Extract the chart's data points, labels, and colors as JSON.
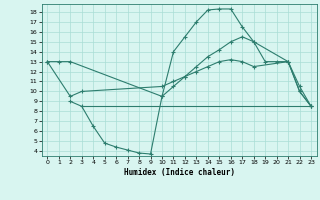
{
  "line1_x": [
    0,
    1,
    2,
    10,
    11,
    12,
    13,
    14,
    15,
    16,
    17,
    18,
    21,
    22,
    23
  ],
  "line1_y": [
    13,
    13,
    13,
    9.5,
    14,
    15.5,
    17,
    18.2,
    18.3,
    18.3,
    16.5,
    15,
    13,
    10,
    8.5
  ],
  "line2_x": [
    2,
    3,
    4,
    5,
    6,
    7,
    8,
    9,
    10,
    11,
    12,
    13,
    14,
    15,
    16,
    17,
    18,
    19,
    20,
    21,
    22,
    23
  ],
  "line2_y": [
    9,
    8.5,
    6.5,
    4.8,
    4.4,
    4.1,
    3.8,
    3.7,
    9.5,
    10.5,
    11.5,
    12.5,
    13.5,
    14.2,
    15,
    15.5,
    15,
    13,
    13,
    13,
    10,
    8.5
  ],
  "line3_x": [
    3,
    19,
    23
  ],
  "line3_y": [
    8.5,
    8.5,
    8.5
  ],
  "line4_x": [
    0,
    2,
    3,
    10,
    11,
    12,
    13,
    14,
    15,
    16,
    17,
    18,
    21,
    22,
    23
  ],
  "line4_y": [
    13,
    9.5,
    10,
    10.5,
    11,
    11.5,
    12,
    12.5,
    13,
    13.2,
    13,
    12.5,
    13,
    10.5,
    8.5
  ],
  "color": "#2d7d6e",
  "bg_color": "#d8f5f0",
  "grid_color": "#aaddd5",
  "xlabel": "Humidex (Indice chaleur)",
  "xlim": [
    -0.5,
    23.5
  ],
  "ylim": [
    3.5,
    18.8
  ],
  "yticks": [
    4,
    5,
    6,
    7,
    8,
    9,
    10,
    11,
    12,
    13,
    14,
    15,
    16,
    17,
    18
  ],
  "xticks": [
    0,
    1,
    2,
    3,
    4,
    5,
    6,
    7,
    8,
    9,
    10,
    11,
    12,
    13,
    14,
    15,
    16,
    17,
    18,
    19,
    20,
    21,
    22,
    23
  ]
}
